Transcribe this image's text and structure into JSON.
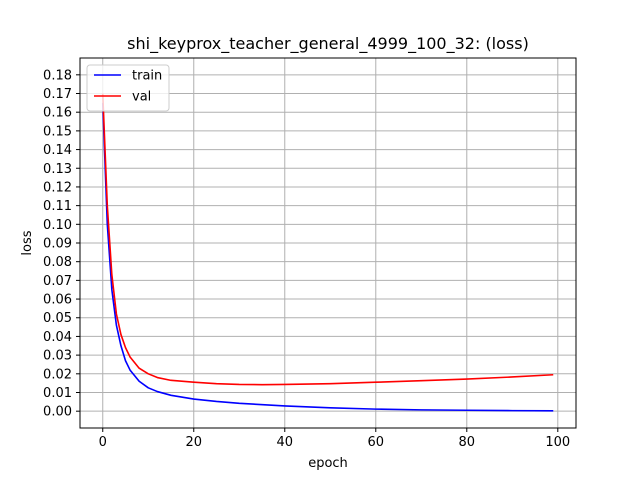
{
  "chart_data": {
    "type": "line",
    "title": "shi_keyprox_teacher_general_4999_100_32: (loss)",
    "xlabel": "epoch",
    "ylabel": "loss",
    "xlim": [
      -5,
      104
    ],
    "ylim": [
      -0.009,
      0.189
    ],
    "xticks": [
      0,
      20,
      40,
      60,
      80,
      100
    ],
    "yticks": [
      0.0,
      0.01,
      0.02,
      0.03,
      0.04,
      0.05,
      0.06,
      0.07,
      0.08,
      0.09,
      0.1,
      0.11,
      0.12,
      0.13,
      0.14,
      0.15,
      0.16,
      0.17,
      0.18
    ],
    "ytick_decimals": 2,
    "grid": true,
    "legend_position": "top-left",
    "series": [
      {
        "name": "train",
        "color": "#0000ff",
        "x": [
          0,
          1,
          2,
          3,
          4,
          5,
          6,
          8,
          10,
          12,
          15,
          20,
          25,
          30,
          40,
          50,
          60,
          70,
          80,
          90,
          99
        ],
        "y": [
          0.165,
          0.1,
          0.065,
          0.046,
          0.035,
          0.027,
          0.022,
          0.016,
          0.0125,
          0.0105,
          0.0085,
          0.0065,
          0.0052,
          0.0042,
          0.0028,
          0.0018,
          0.0011,
          0.0007,
          0.0005,
          0.0003,
          0.0002
        ]
      },
      {
        "name": "val",
        "color": "#ff0000",
        "x": [
          0,
          1,
          2,
          3,
          4,
          5,
          6,
          8,
          10,
          12,
          15,
          20,
          25,
          30,
          35,
          40,
          50,
          60,
          70,
          80,
          90,
          99
        ],
        "y": [
          0.17,
          0.11,
          0.073,
          0.052,
          0.041,
          0.034,
          0.029,
          0.023,
          0.02,
          0.018,
          0.0165,
          0.0155,
          0.0147,
          0.0143,
          0.0142,
          0.0143,
          0.0147,
          0.0155,
          0.0163,
          0.0172,
          0.0183,
          0.0195
        ]
      }
    ]
  }
}
